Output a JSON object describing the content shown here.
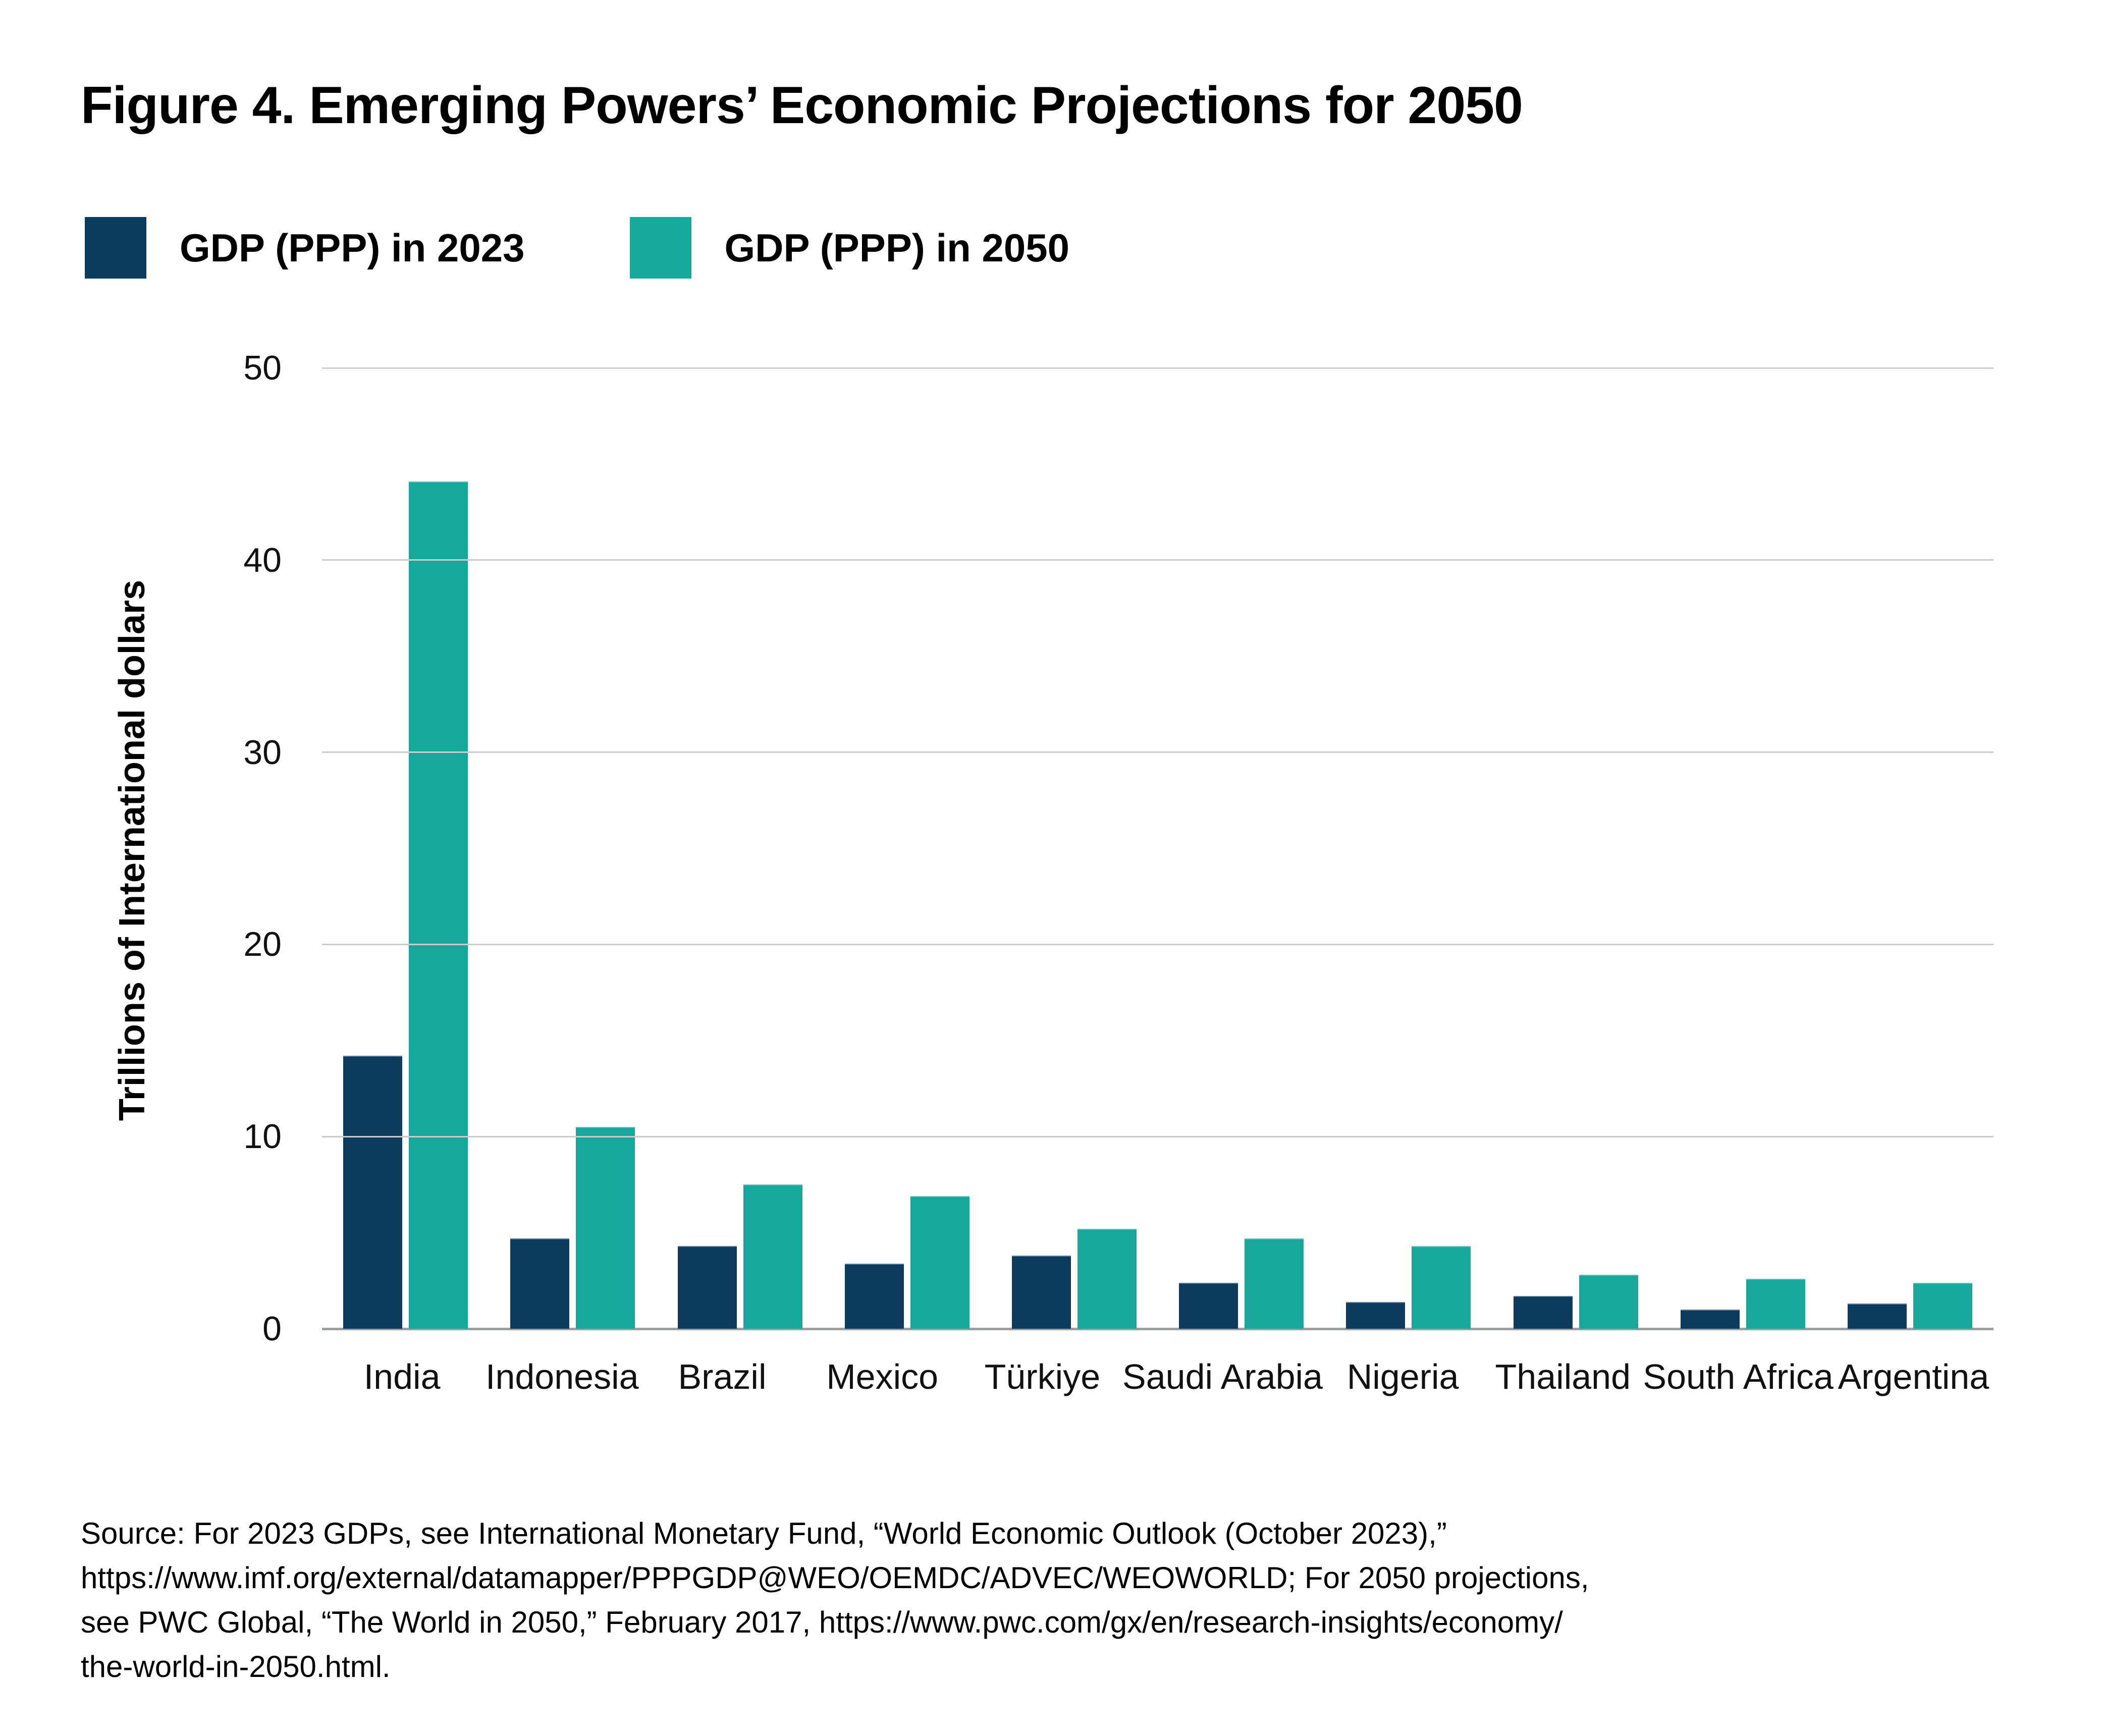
{
  "title": "Figure 4. Emerging Powers’ Economic Projections for 2050",
  "legend": [
    {
      "label": "GDP (PPP) in 2023",
      "color": "#0C3B5E"
    },
    {
      "label": "GDP (PPP) in 2050",
      "color": "#17A79C"
    }
  ],
  "y_axis": {
    "title": "Trillions of International dollars",
    "ticks": [
      "0",
      "10",
      "20",
      "30",
      "40",
      "50"
    ]
  },
  "chart_data": {
    "type": "bar",
    "categories": [
      "India",
      "Indonesia",
      "Brazil",
      "Mexico",
      "Türkiye",
      "Saudi Arabia",
      "Nigeria",
      "Thailand",
      "South Africa",
      "Argentina"
    ],
    "series": [
      {
        "name": "GDP (PPP) in 2023",
        "color": "#0C3B5E",
        "values": [
          14.2,
          4.7,
          4.3,
          3.4,
          3.8,
          2.4,
          1.4,
          1.7,
          1.0,
          1.3
        ]
      },
      {
        "name": "GDP (PPP) in 2050",
        "color": "#17A79C",
        "values": [
          44.1,
          10.5,
          7.5,
          6.9,
          5.2,
          4.7,
          4.3,
          2.8,
          2.6,
          2.4
        ]
      }
    ],
    "title": "Figure 4. Emerging Powers’ Economic Projections for 2050",
    "xlabel": "",
    "ylabel": "Trillions of International dollars",
    "ylim": [
      0,
      50
    ],
    "grid": true,
    "legend_position": "top-left",
    "gridline_color": "#cccccc",
    "axis_line_color": "#9b9fa2"
  },
  "source": {
    "lines": [
      "Source: For 2023 GDPs, see International Monetary Fund, “World Economic Outlook (October 2023),”",
      "https://www.imf.org/external/datamapper/PPPGDP@WEO/OEMDC/ADVEC/WEOWORLD; For 2050 projections,",
      "see PWC Global, “The World in 2050,” February 2017, https://www.pwc.com/gx/en/research-insights/economy/",
      "the-world-in-2050.html."
    ]
  }
}
